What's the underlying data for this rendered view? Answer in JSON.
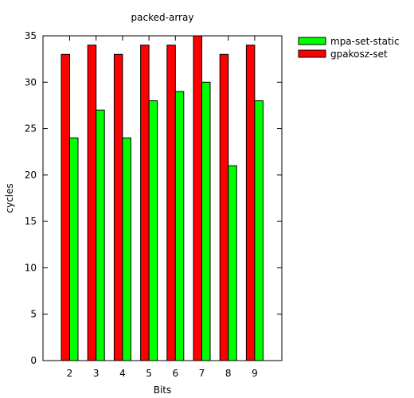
{
  "chart_data": {
    "type": "bar",
    "title": "packed-array",
    "xlabel": "Bits",
    "ylabel": "cycles",
    "categories": [
      "2",
      "3",
      "4",
      "5",
      "6",
      "7",
      "8",
      "9"
    ],
    "ylim": [
      0,
      35
    ],
    "yticks": [
      0,
      5,
      10,
      15,
      20,
      25,
      30,
      35
    ],
    "legend_position": "top-right, outside plot",
    "series": [
      {
        "name": "mpa-set-static",
        "color": "#00ff00",
        "values": [
          24,
          27,
          24,
          28,
          29,
          30,
          21,
          28
        ]
      },
      {
        "name": "gpakosz-set",
        "color": "#ff0000",
        "values": [
          33,
          34,
          33,
          34,
          34,
          35,
          33,
          34
        ]
      }
    ]
  }
}
